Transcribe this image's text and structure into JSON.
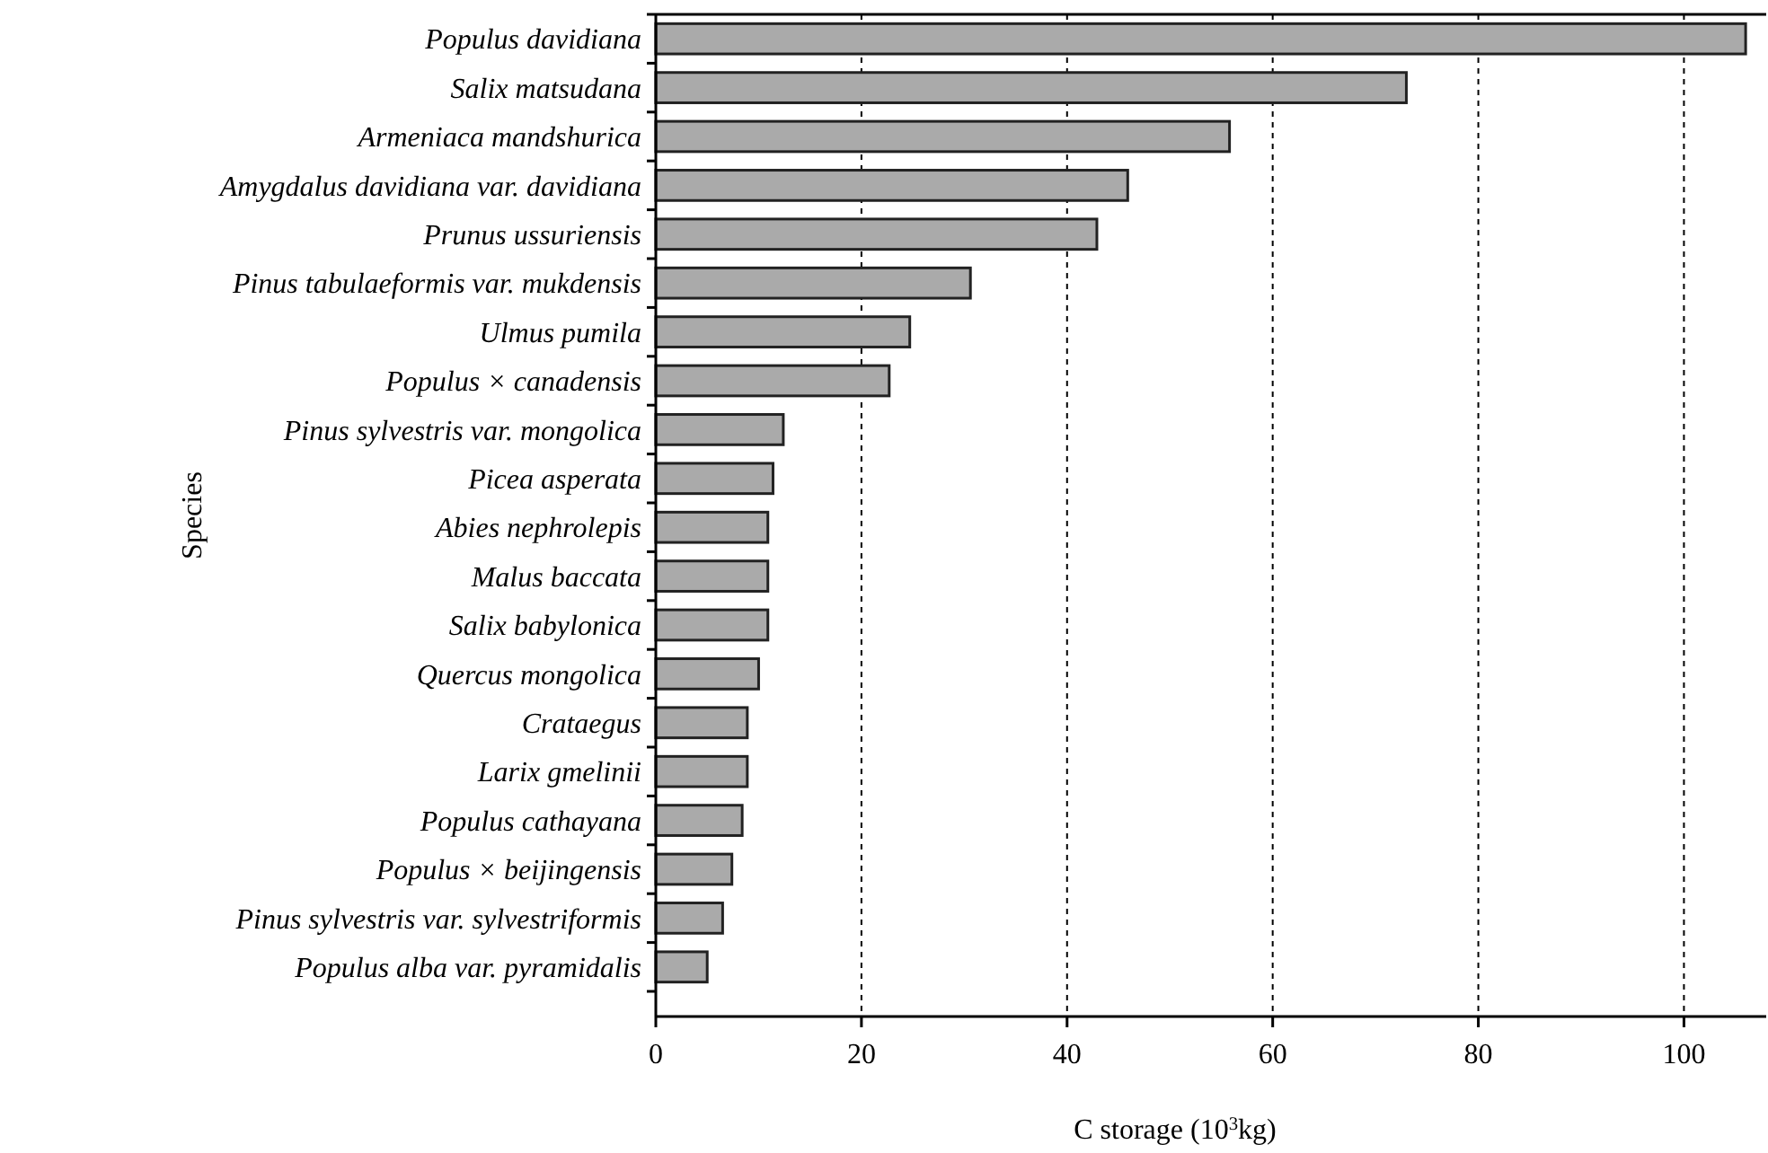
{
  "chart_data": {
    "type": "bar",
    "orientation": "horizontal",
    "xlabel": "C storage (10$^{3}$kg)",
    "ylabel": "Species",
    "categories": [
      "Populus davidiana",
      "Salix matsudana",
      "Armeniaca mandshurica",
      "Amygdalus davidiana var. davidiana",
      "Prunus ussuriensis",
      "Pinus tabulaeformis var. mukdensis",
      "Ulmus pumila",
      "Populus × canadensis",
      "Pinus sylvestris var. mongolica",
      "Picea asperata",
      "Abies nephrolepis",
      "Malus baccata",
      "Salix babylonica",
      "Quercus mongolica",
      "Crataegus",
      "Larix gmelinii",
      "Populus cathayana",
      "Populus × beijingensis",
      "Pinus sylvestris var. sylvestriformis",
      "Populus alba var. pyramidalis"
    ],
    "values": [
      106,
      73,
      55.8,
      45.9,
      42.9,
      30.6,
      24.7,
      22.7,
      12.4,
      11.4,
      10.9,
      10.9,
      10.9,
      10,
      8.9,
      8.9,
      8.4,
      7.4,
      6.5,
      5
    ],
    "color": "#aaaaaa",
    "xlim": [
      0,
      108
    ],
    "xticks": [
      0,
      20,
      40,
      60,
      80,
      100
    ],
    "grid": "x"
  }
}
